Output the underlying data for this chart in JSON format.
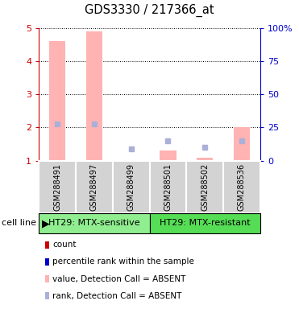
{
  "title": "GDS3330 / 217366_at",
  "samples": [
    "GSM288491",
    "GSM288497",
    "GSM288499",
    "GSM288501",
    "GSM288502",
    "GSM288536"
  ],
  "value_bars": [
    4.6,
    4.9,
    1.0,
    1.3,
    1.1,
    2.0
  ],
  "rank_dots": [
    2.1,
    2.1,
    1.35,
    1.6,
    1.4,
    1.6
  ],
  "value_color": "#ffb3b3",
  "rank_color": "#aab0d8",
  "ylim_left": [
    1,
    5
  ],
  "ylim_right": [
    0,
    100
  ],
  "yticks_left": [
    1,
    2,
    3,
    4,
    5
  ],
  "yticks_right": [
    0,
    25,
    50,
    75,
    100
  ],
  "ytick_labels_right": [
    "0",
    "25",
    "50",
    "75",
    "100%"
  ],
  "left_tick_color": "#cc0000",
  "right_tick_color": "#0000cc",
  "group1_label": "HT29: MTX-sensitive",
  "group2_label": "HT29: MTX-resistant",
  "group1_indices": [
    0,
    1,
    2
  ],
  "group2_indices": [
    3,
    4,
    5
  ],
  "group1_color": "#90ee90",
  "group2_color": "#55dd55",
  "cell_line_label": "cell line",
  "legend_items": [
    {
      "color": "#cc0000",
      "label": "count"
    },
    {
      "color": "#0000cc",
      "label": "percentile rank within the sample"
    },
    {
      "color": "#ffb3b3",
      "label": "value, Detection Call = ABSENT"
    },
    {
      "color": "#aab0d8",
      "label": "rank, Detection Call = ABSENT"
    }
  ],
  "bar_bg_color": "#d3d3d3",
  "figsize": [
    3.71,
    3.84
  ],
  "dpi": 100
}
